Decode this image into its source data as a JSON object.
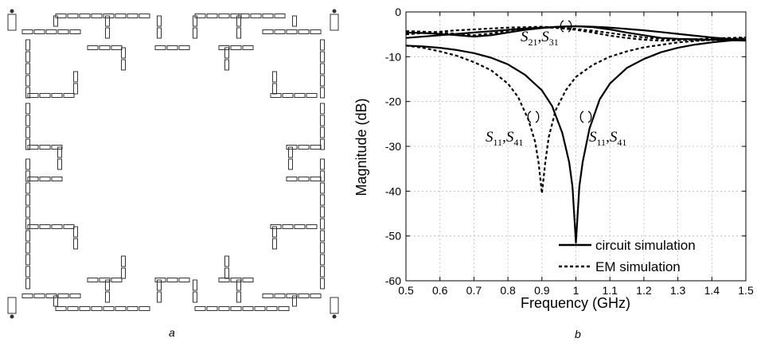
{
  "panels": {
    "a_label": "a",
    "b_label": "b"
  },
  "chart_data": {
    "type": "line",
    "xlabel": "Frequency (GHz)",
    "ylabel": "Magnitude (dB)",
    "xlim": [
      0.5,
      1.5
    ],
    "ylim": [
      -60,
      0
    ],
    "xticks": [
      "0.5",
      "0.6",
      "0.7",
      "0.8",
      "0.9",
      "1",
      "1.1",
      "1.2",
      "1.3",
      "1.4",
      "1.5"
    ],
    "yticks": [
      "0",
      "-10",
      "-20",
      "-30",
      "-40",
      "-50",
      "-60"
    ],
    "grid": true,
    "legend_placement": "bottom-right",
    "legend": [
      "circuit simulation",
      "EM simulation"
    ],
    "annotations": [
      {
        "main": "S",
        "sub1": "21",
        "sep": ",",
        "main2": "S",
        "sub2": "31"
      },
      {
        "main": "S",
        "sub1": "11",
        "sep": ",",
        "main2": "S",
        "sub2": "41"
      },
      {
        "main": "S",
        "sub1": "11",
        "sep": ",",
        "main2": "S",
        "sub2": "41"
      }
    ],
    "series": [
      {
        "style": "solid",
        "x": [
          0.5,
          0.55,
          0.6,
          0.65,
          0.7,
          0.75,
          0.8,
          0.85,
          0.9,
          0.95,
          1.0,
          1.05,
          1.1,
          1.15,
          1.2,
          1.25,
          1.3,
          1.35,
          1.4,
          1.45,
          1.5
        ],
        "y": [
          -5.8,
          -5.5,
          -5.2,
          -4.9,
          -4.6,
          -4.3,
          -4.0,
          -3.7,
          -3.5,
          -3.3,
          -3.2,
          -3.3,
          -3.5,
          -3.8,
          -4.1,
          -4.5,
          -4.9,
          -5.3,
          -5.7,
          -6.0,
          -6.3
        ]
      },
      {
        "style": "solid",
        "x": [
          0.5,
          0.55,
          0.6,
          0.65,
          0.7,
          0.75,
          0.8,
          0.85,
          0.9,
          0.95,
          1.0,
          1.05,
          1.1,
          1.15,
          1.2,
          1.25,
          1.3,
          1.35,
          1.4,
          1.45,
          1.5
        ],
        "y": [
          -4.6,
          -4.7,
          -4.9,
          -5.2,
          -5.5,
          -5.2,
          -4.6,
          -4.0,
          -3.6,
          -3.3,
          -3.2,
          -3.4,
          -3.9,
          -4.6,
          -5.2,
          -5.8,
          -6.0,
          -6.1,
          -6.2,
          -6.3,
          -6.4
        ]
      },
      {
        "style": "solid",
        "x": [
          0.5,
          0.55,
          0.6,
          0.65,
          0.7,
          0.75,
          0.8,
          0.85,
          0.9,
          0.93,
          0.96,
          0.98,
          0.99,
          1.0,
          1.01,
          1.02,
          1.04,
          1.07,
          1.1,
          1.15,
          1.2,
          1.25,
          1.3,
          1.35,
          1.4,
          1.45,
          1.5
        ],
        "y": [
          -7.5,
          -7.7,
          -8.0,
          -8.5,
          -9.2,
          -10.2,
          -11.7,
          -14.0,
          -17.5,
          -21.0,
          -27.0,
          -33.5,
          -39.0,
          -51.5,
          -39.0,
          -33.5,
          -26.0,
          -19.5,
          -16.0,
          -12.5,
          -10.5,
          -9.0,
          -8.0,
          -7.3,
          -6.8,
          -6.4,
          -6.1
        ]
      },
      {
        "style": "dashed",
        "x": [
          0.5,
          0.55,
          0.6,
          0.65,
          0.7,
          0.75,
          0.8,
          0.85,
          0.9,
          0.95,
          1.0,
          1.05,
          1.1,
          1.15,
          1.2,
          1.25,
          1.3,
          1.35,
          1.4,
          1.45,
          1.5
        ],
        "y": [
          -5.0,
          -4.7,
          -4.4,
          -4.1,
          -3.9,
          -3.7,
          -3.5,
          -3.4,
          -3.3,
          -3.5,
          -3.8,
          -4.2,
          -4.7,
          -5.2,
          -5.7,
          -6.0,
          -6.2,
          -6.3,
          -6.3,
          -6.2,
          -6.1
        ]
      },
      {
        "style": "dashed",
        "x": [
          0.5,
          0.55,
          0.6,
          0.65,
          0.7,
          0.75,
          0.8,
          0.85,
          0.9,
          0.95,
          1.0,
          1.05,
          1.1,
          1.15,
          1.2,
          1.25,
          1.3,
          1.35,
          1.4,
          1.45,
          1.5
        ],
        "y": [
          -4.3,
          -4.4,
          -4.6,
          -4.9,
          -5.2,
          -4.8,
          -4.2,
          -3.7,
          -3.4,
          -3.6,
          -4.0,
          -4.6,
          -5.3,
          -5.8,
          -6.2,
          -6.4,
          -6.3,
          -6.1,
          -5.9,
          -5.8,
          -5.7
        ]
      },
      {
        "style": "dashed",
        "x": [
          0.5,
          0.55,
          0.6,
          0.65,
          0.7,
          0.75,
          0.8,
          0.83,
          0.86,
          0.88,
          0.89,
          0.9,
          0.91,
          0.92,
          0.94,
          0.97,
          1.0,
          1.05,
          1.1,
          1.15,
          1.2,
          1.3,
          1.4,
          1.5
        ],
        "y": [
          -7.5,
          -8.0,
          -8.8,
          -9.8,
          -11.2,
          -13.0,
          -16.0,
          -19.0,
          -24.0,
          -29.0,
          -33.5,
          -40.5,
          -33.5,
          -28.0,
          -22.0,
          -17.5,
          -14.5,
          -11.8,
          -10.0,
          -8.8,
          -7.9,
          -6.8,
          -6.2,
          -5.9
        ]
      }
    ]
  }
}
